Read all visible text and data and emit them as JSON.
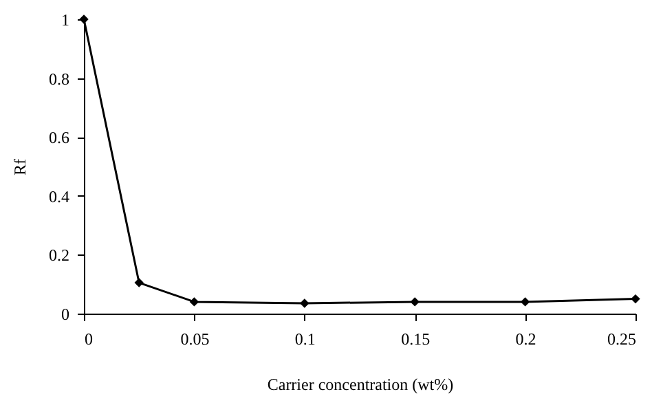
{
  "chart_data": {
    "type": "line",
    "xlabel": "Carrier concentration (wt%)",
    "ylabel": "Rf",
    "x": [
      0,
      0.025,
      0.05,
      0.1,
      0.15,
      0.2,
      0.25
    ],
    "series": [
      {
        "color": "#000000",
        "values": [
          1,
          0.105,
          0.04,
          0.035,
          0.04,
          0.04,
          0.05
        ]
      }
    ],
    "xlim": [
      0,
      0.25
    ],
    "xticks": [
      0,
      0.05,
      0.1,
      0.15,
      0.2,
      0.25
    ],
    "ylim": [
      0,
      1
    ],
    "yticks": [
      0,
      0.2,
      0.4,
      0.6,
      0.8,
      1
    ],
    "grid": false,
    "marker": "diamond",
    "line_style": "solid"
  }
}
